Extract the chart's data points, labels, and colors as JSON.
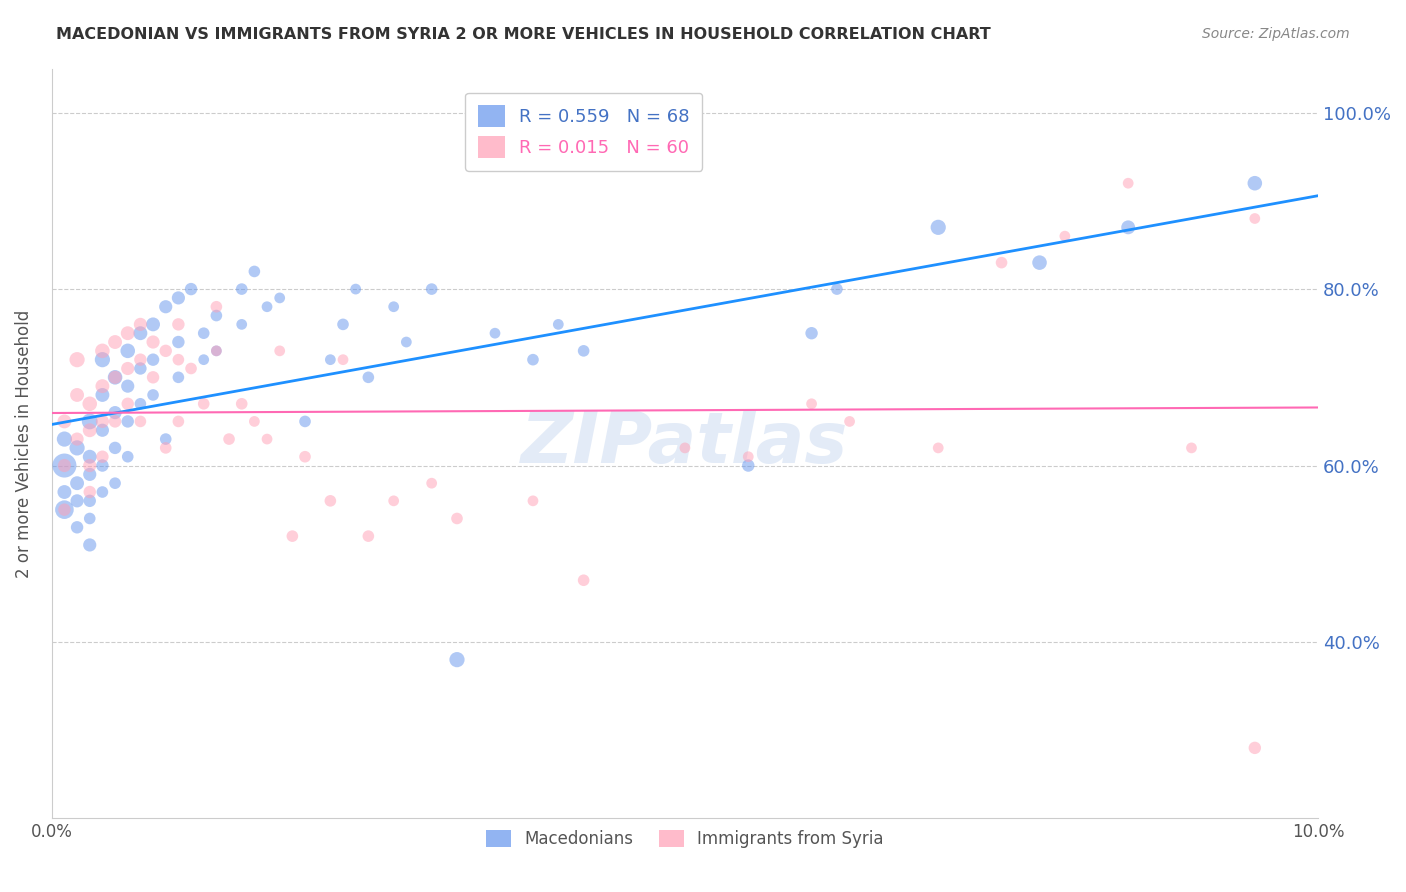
{
  "title": "MACEDONIAN VS IMMIGRANTS FROM SYRIA 2 OR MORE VEHICLES IN HOUSEHOLD CORRELATION CHART",
  "source": "Source: ZipAtlas.com",
  "xlabel": "",
  "ylabel": "2 or more Vehicles in Household",
  "xlim": [
    0.0,
    0.1
  ],
  "ylim": [
    0.2,
    1.05
  ],
  "yticks": [
    0.4,
    0.6,
    0.8,
    1.0
  ],
  "ytick_labels": [
    "40.0%",
    "60.0%",
    "80.0%",
    "100.0%"
  ],
  "xticks": [
    0.0,
    0.02,
    0.04,
    0.06,
    0.08,
    0.1
  ],
  "xtick_labels": [
    "0.0%",
    "",
    "",
    "",
    "",
    "10.0%"
  ],
  "legend_macedonian": "Macedonians",
  "legend_syria": "Immigrants from Syria",
  "R_macedonian": 0.559,
  "N_macedonian": 68,
  "R_syria": 0.015,
  "N_syria": 60,
  "blue_color": "#6495ED",
  "pink_color": "#FF9EB5",
  "blue_line_color": "#1E90FF",
  "pink_line_color": "#FF69B4",
  "watermark": "ZIPatlas",
  "macedonian_x": [
    0.001,
    0.001,
    0.001,
    0.001,
    0.002,
    0.002,
    0.002,
    0.002,
    0.003,
    0.003,
    0.003,
    0.003,
    0.003,
    0.003,
    0.004,
    0.004,
    0.004,
    0.004,
    0.004,
    0.005,
    0.005,
    0.005,
    0.005,
    0.006,
    0.006,
    0.006,
    0.006,
    0.007,
    0.007,
    0.007,
    0.008,
    0.008,
    0.008,
    0.009,
    0.009,
    0.01,
    0.01,
    0.01,
    0.011,
    0.012,
    0.012,
    0.013,
    0.013,
    0.015,
    0.015,
    0.016,
    0.017,
    0.018,
    0.02,
    0.022,
    0.023,
    0.024,
    0.025,
    0.027,
    0.028,
    0.03,
    0.032,
    0.035,
    0.038,
    0.04,
    0.042,
    0.055,
    0.06,
    0.062,
    0.07,
    0.078,
    0.085,
    0.095
  ],
  "macedonian_y": [
    0.6,
    0.63,
    0.57,
    0.55,
    0.62,
    0.58,
    0.56,
    0.53,
    0.65,
    0.61,
    0.59,
    0.56,
    0.54,
    0.51,
    0.72,
    0.68,
    0.64,
    0.6,
    0.57,
    0.7,
    0.66,
    0.62,
    0.58,
    0.73,
    0.69,
    0.65,
    0.61,
    0.75,
    0.71,
    0.67,
    0.76,
    0.72,
    0.68,
    0.78,
    0.63,
    0.79,
    0.74,
    0.7,
    0.8,
    0.75,
    0.72,
    0.77,
    0.73,
    0.8,
    0.76,
    0.82,
    0.78,
    0.79,
    0.65,
    0.72,
    0.76,
    0.8,
    0.7,
    0.78,
    0.74,
    0.8,
    0.38,
    0.75,
    0.72,
    0.76,
    0.73,
    0.6,
    0.75,
    0.8,
    0.87,
    0.83,
    0.87,
    0.92
  ],
  "macedonian_sizes": [
    300,
    120,
    100,
    180,
    120,
    100,
    90,
    80,
    130,
    100,
    90,
    80,
    70,
    90,
    120,
    100,
    90,
    80,
    70,
    110,
    90,
    80,
    70,
    110,
    90,
    80,
    70,
    100,
    80,
    70,
    100,
    80,
    70,
    90,
    70,
    90,
    80,
    70,
    80,
    70,
    60,
    70,
    60,
    70,
    60,
    70,
    60,
    60,
    70,
    60,
    70,
    60,
    70,
    60,
    60,
    70,
    120,
    60,
    70,
    60,
    70,
    80,
    80,
    70,
    120,
    110,
    100,
    110
  ],
  "syria_x": [
    0.001,
    0.001,
    0.001,
    0.002,
    0.002,
    0.002,
    0.003,
    0.003,
    0.003,
    0.003,
    0.004,
    0.004,
    0.004,
    0.004,
    0.005,
    0.005,
    0.005,
    0.006,
    0.006,
    0.006,
    0.007,
    0.007,
    0.007,
    0.008,
    0.008,
    0.009,
    0.009,
    0.01,
    0.01,
    0.01,
    0.011,
    0.012,
    0.013,
    0.013,
    0.014,
    0.015,
    0.016,
    0.017,
    0.018,
    0.019,
    0.02,
    0.022,
    0.023,
    0.025,
    0.027,
    0.03,
    0.032,
    0.038,
    0.042,
    0.05,
    0.055,
    0.06,
    0.063,
    0.07,
    0.075,
    0.08,
    0.085,
    0.09,
    0.095,
    0.095
  ],
  "syria_y": [
    0.65,
    0.6,
    0.55,
    0.72,
    0.68,
    0.63,
    0.67,
    0.64,
    0.6,
    0.57,
    0.73,
    0.69,
    0.65,
    0.61,
    0.74,
    0.7,
    0.65,
    0.75,
    0.71,
    0.67,
    0.76,
    0.72,
    0.65,
    0.74,
    0.7,
    0.73,
    0.62,
    0.76,
    0.72,
    0.65,
    0.71,
    0.67,
    0.78,
    0.73,
    0.63,
    0.67,
    0.65,
    0.63,
    0.73,
    0.52,
    0.61,
    0.56,
    0.72,
    0.52,
    0.56,
    0.58,
    0.54,
    0.56,
    0.47,
    0.62,
    0.61,
    0.67,
    0.65,
    0.62,
    0.83,
    0.86,
    0.92,
    0.62,
    0.88,
    0.28
  ],
  "syria_sizes": [
    100,
    90,
    80,
    120,
    100,
    90,
    110,
    100,
    90,
    80,
    110,
    100,
    90,
    80,
    100,
    90,
    80,
    100,
    90,
    80,
    90,
    80,
    70,
    90,
    80,
    80,
    70,
    80,
    70,
    70,
    70,
    70,
    70,
    60,
    70,
    70,
    60,
    60,
    60,
    70,
    70,
    70,
    60,
    70,
    60,
    60,
    70,
    60,
    70,
    60,
    60,
    60,
    60,
    60,
    70,
    60,
    60,
    60,
    60,
    80
  ]
}
